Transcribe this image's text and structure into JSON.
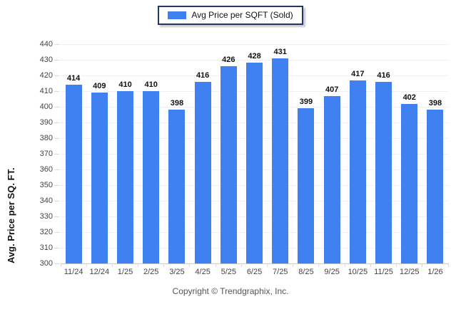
{
  "chart_data": {
    "type": "bar",
    "title": "",
    "legend": "Avg Price per SQFT (Sold)",
    "ylabel": "Avg. Price per SQ. FT.",
    "xlabel": "",
    "categories": [
      "11/24",
      "12/24",
      "1/25",
      "2/25",
      "3/25",
      "4/25",
      "5/25",
      "6/25",
      "7/25",
      "8/25",
      "9/25",
      "10/25",
      "11/25",
      "12/25",
      "1/26"
    ],
    "values": [
      414,
      409,
      410,
      410,
      398,
      416,
      426,
      428,
      431,
      399,
      407,
      417,
      416,
      402,
      398
    ],
    "ylim": [
      300,
      440
    ],
    "ytick_step": 10,
    "grid": true,
    "legend_position": "top-center",
    "value_labels": true
  },
  "colors": {
    "bar": "#3f81f0",
    "legend_border": "#1f3864",
    "grid": "#f0f0f0",
    "axis_line": "#c9c9c9",
    "tick": "#d8d8d8",
    "tick_label": "#444444",
    "value_label": "#111111",
    "copyright": "#555555"
  },
  "footer": {
    "copyright": "Copyright © Trendgraphix, Inc."
  }
}
